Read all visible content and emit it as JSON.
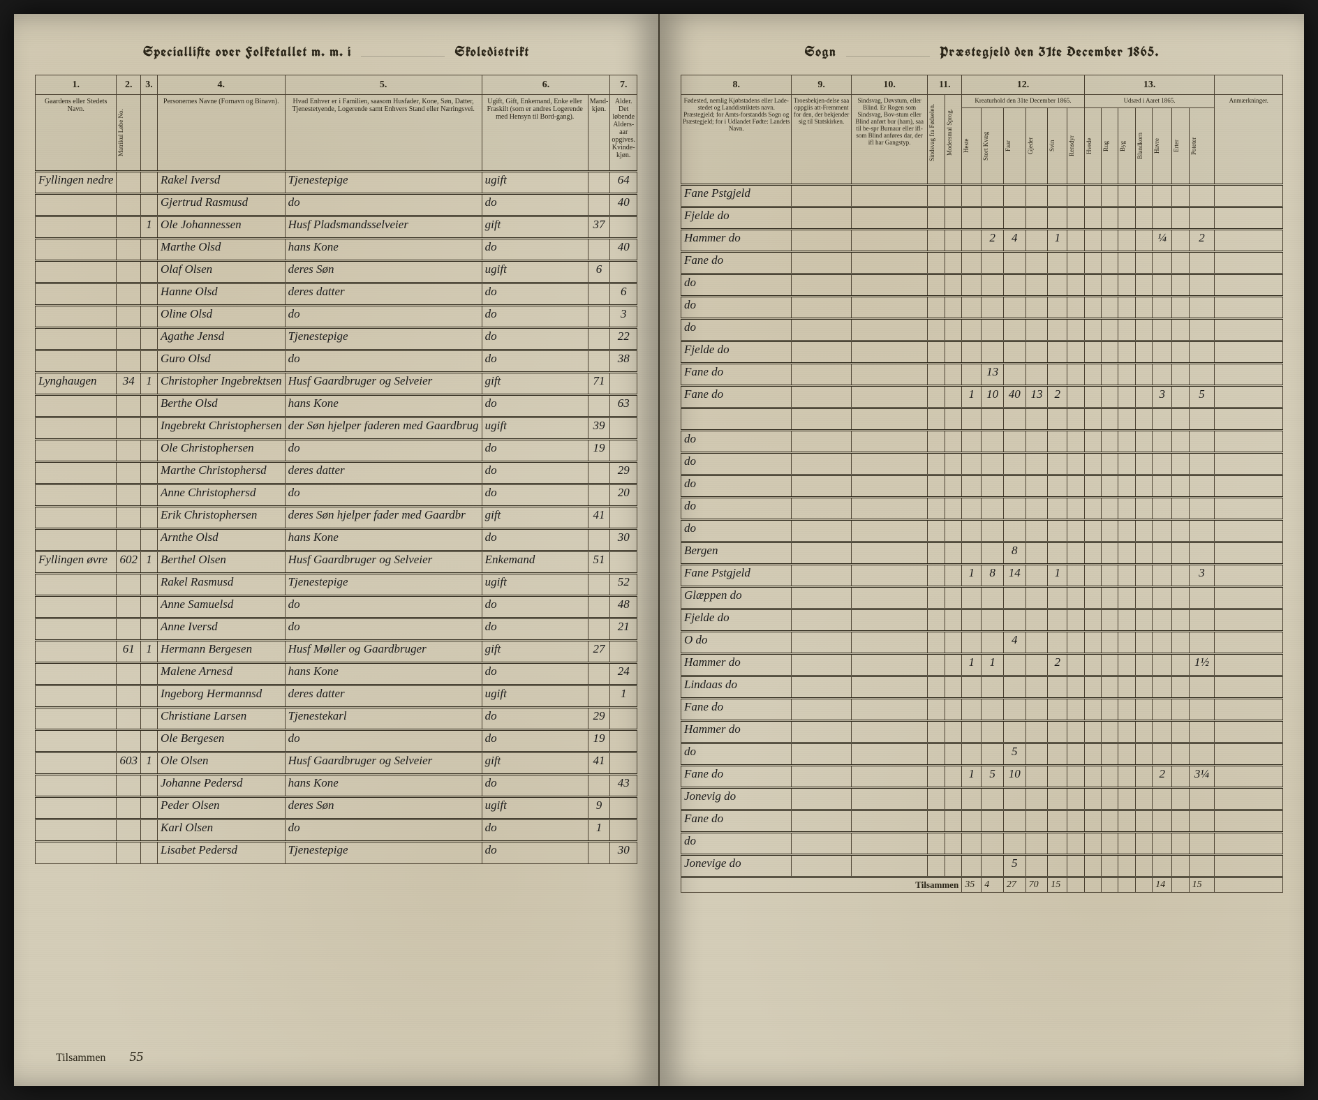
{
  "meta": {
    "year": "1865",
    "date_label": "31te December",
    "left_title_a": "Speciallifte over Folketallet m. m. i",
    "left_title_b": "Skoledistrikt",
    "right_title_a": "Sogn",
    "right_title_b": "Præstegjeld den"
  },
  "left_columns": {
    "c1": "1.",
    "c2": "2.",
    "c3": "3.",
    "c4": "4.",
    "c5": "5.",
    "c6": "6.",
    "c7": "7.",
    "h1": "Gaardens eller Stedets\nNavn.",
    "h2": "Matrikul Løbe No.",
    "h3": "",
    "h4": "Personernes Navne (Fornavn og Binavn).",
    "h5": "Hvad Enhver er i Familien, saasom Husfader, Kone, Søn, Datter, Tjenestetyende, Logerende\nsamt\nEnhvers Stand eller Næringsvei.",
    "h6a": "Ugift, Gift, Enkemand, Enke eller Fraskilt (som er andres Logerende med Hensyn til Bord-gang).",
    "h6b": "Mand-kjøn.",
    "h7": "Alder.\nDet løbende Alders-aar opgives.\nKvinde-kjøn."
  },
  "right_columns": {
    "c8": "8.",
    "c9": "9.",
    "c10": "10.",
    "c11": "11.",
    "c12": "12.",
    "c13": "13.",
    "h8": "Fødested, nemlig Kjøbstadens eller Lade-stedet og Landdistriktets navn. Præstegjeld; for Amts-forstandds Sogn og Præstegjeld; for i Udlandet Fødte: Landets Navn.",
    "h9": "Troesbekjen-delse saa oppgiis att-Fremment for den, der bekjender sig til Statskirken.",
    "h10": "Sindsvag, Døvstum, eller Blind. Er Rogen som Sindsvag, Bov-stum eller Blind anført bur (ham), saa til be-spr Burnaur eller ifl-som Blind anføres dar, der ifl har Gangstyp.",
    "h11a": "Sindsvag fra Fødselen.",
    "h11b": "Modersmal Sprog.",
    "h12": "Kreaturhold den 31te December 1865.",
    "h13": "Udsæd i Aaret 1865.",
    "h14": "Anmærkninger.",
    "animals": [
      "Heste",
      "Stort Kvæg",
      "Faar",
      "Gjeder",
      "Svin",
      "Rensdyr"
    ],
    "crops": [
      "Hvede",
      "Rug",
      "Byg",
      "Blandkorn",
      "Havre",
      "Erter",
      "Poteter"
    ]
  },
  "rows": [
    {
      "place": "Fyllingen nedre",
      "mat": "",
      "a": "",
      "b": "",
      "name": "Rakel Iversd",
      "rel": "Tjenestepige",
      "stat": "ugift",
      "m": "",
      "f": "64",
      "birth": "Fane Pstgjeld",
      "nums": {}
    },
    {
      "place": "",
      "mat": "",
      "a": "",
      "b": "",
      "name": "Gjertrud Rasmusd",
      "rel": "do",
      "stat": "do",
      "m": "",
      "f": "40",
      "birth": "Fjelde  do",
      "nums": {}
    },
    {
      "place": "",
      "mat": "",
      "a": "1",
      "b": "1",
      "name": "Ole Johannessen",
      "rel": "Husf Pladsmandsselveier",
      "stat": "gift",
      "m": "37",
      "f": "",
      "birth": "Hammer do",
      "nums": {
        "kv": "2",
        "fa": "4",
        "sv": "1",
        "hav": "¼",
        "pot": "2"
      }
    },
    {
      "place": "",
      "mat": "",
      "a": "",
      "b": "",
      "name": "Marthe Olsd",
      "rel": "hans Kone",
      "stat": "do",
      "m": "",
      "f": "40",
      "birth": "Fane  do",
      "nums": {}
    },
    {
      "place": "",
      "mat": "",
      "a": "",
      "b": "",
      "name": "Olaf Olsen",
      "rel": "deres Søn",
      "stat": "ugift",
      "m": "6",
      "f": "",
      "birth": "do",
      "nums": {}
    },
    {
      "place": "",
      "mat": "",
      "a": "",
      "b": "",
      "name": "Hanne Olsd",
      "rel": "deres datter",
      "stat": "do",
      "m": "",
      "f": "6",
      "birth": "do",
      "nums": {}
    },
    {
      "place": "",
      "mat": "",
      "a": "",
      "b": "",
      "name": "Oline Olsd",
      "rel": "do",
      "stat": "do",
      "m": "",
      "f": "3",
      "birth": "do",
      "nums": {}
    },
    {
      "place": "",
      "mat": "",
      "a": "",
      "b": "",
      "name": "Agathe Jensd",
      "rel": "Tjenestepige",
      "stat": "do",
      "m": "",
      "f": "22",
      "birth": "Fjelde do",
      "nums": {}
    },
    {
      "place": "",
      "mat": "",
      "a": "",
      "b": "",
      "name": "Guro Olsd",
      "rel": "do",
      "stat": "do",
      "m": "",
      "f": "38",
      "birth": "Fane do",
      "nums": {
        "kv": "13"
      }
    },
    {
      "place": "Lynghaugen",
      "mat": "34",
      "a": "1",
      "b": "1",
      "name": "Christopher Ingebrektsen",
      "rel": "Husf Gaardbruger og Selveier",
      "stat": "gift",
      "m": "71",
      "f": "",
      "birth": "Fane  do",
      "nums": {
        "he": "1",
        "kv": "10",
        "fa": "40",
        "gj": "13",
        "sv": "2",
        "hav": "3",
        "pot": "5"
      }
    },
    {
      "place": "",
      "mat": "",
      "a": "",
      "b": "",
      "name": "Berthe Olsd",
      "rel": "hans Kone",
      "stat": "do",
      "m": "",
      "f": "63",
      "birth": "",
      "nums": {}
    },
    {
      "place": "",
      "mat": "",
      "a": "",
      "b": "",
      "name": "Ingebrekt Christophersen",
      "rel": "der Søn hjelper faderen med Gaardbrug",
      "stat": "ugift",
      "m": "39",
      "f": "",
      "birth": "do",
      "nums": {}
    },
    {
      "place": "",
      "mat": "",
      "a": "",
      "b": "",
      "name": "Ole Christophersen",
      "rel": "do",
      "stat": "do",
      "m": "19",
      "f": "",
      "birth": "do",
      "nums": {}
    },
    {
      "place": "",
      "mat": "",
      "a": "",
      "b": "",
      "name": "Marthe Christophersd",
      "rel": "deres datter",
      "stat": "do",
      "m": "",
      "f": "29",
      "birth": "do",
      "nums": {}
    },
    {
      "place": "",
      "mat": "",
      "a": "",
      "b": "",
      "name": "Anne Christophersd",
      "rel": "do",
      "stat": "do",
      "m": "",
      "f": "20",
      "birth": "do",
      "nums": {}
    },
    {
      "place": "",
      "mat": "",
      "a": "",
      "b": "",
      "name": "Erik Christophersen",
      "rel": "deres Søn hjelper fader med Gaardbr",
      "stat": "gift",
      "m": "41",
      "f": "",
      "birth": "do",
      "nums": {}
    },
    {
      "place": "",
      "mat": "",
      "a": "",
      "b": "",
      "name": "Arnthe Olsd",
      "rel": "hans Kone",
      "stat": "do",
      "m": "",
      "f": "30",
      "birth": "Bergen",
      "nums": {
        "fa": "8"
      }
    },
    {
      "place": "Fyllingen øvre",
      "mat": "602",
      "a": "1",
      "b": "1",
      "name": "Berthel Olsen",
      "rel": "Husf Gaardbruger og Selveier",
      "stat": "Enkemand",
      "m": "51",
      "f": "",
      "birth": "Fane Pstgjeld",
      "nums": {
        "he": "1",
        "kv": "8",
        "fa": "14",
        "sv": "1",
        "pot": "3"
      }
    },
    {
      "place": "",
      "mat": "",
      "a": "",
      "b": "",
      "name": "Rakel Rasmusd",
      "rel": "Tjenestepige",
      "stat": "ugift",
      "m": "",
      "f": "52",
      "birth": "Glæppen do",
      "nums": {}
    },
    {
      "place": "",
      "mat": "",
      "a": "",
      "b": "",
      "name": "Anne Samuelsd",
      "rel": "do",
      "stat": "do",
      "m": "",
      "f": "48",
      "birth": "Fjelde do",
      "nums": {}
    },
    {
      "place": "",
      "mat": "",
      "a": "",
      "b": "",
      "name": "Anne Iversd",
      "rel": "do",
      "stat": "do",
      "m": "",
      "f": "21",
      "birth": "O  do",
      "nums": {
        "fa": "4"
      }
    },
    {
      "place": "",
      "mat": "61",
      "a": "1",
      "b": "1",
      "name": "Hermann Bergesen",
      "rel": "Husf Møller og Gaardbruger",
      "stat": "gift",
      "m": "27",
      "f": "",
      "birth": "Hammer do",
      "nums": {
        "he": "1",
        "kv": "1",
        "sv": "2",
        "pot": "1½"
      }
    },
    {
      "place": "",
      "mat": "",
      "a": "",
      "b": "",
      "name": "Malene Arnesd",
      "rel": "hans Kone",
      "stat": "do",
      "m": "",
      "f": "24",
      "birth": "Lindaas do",
      "nums": {}
    },
    {
      "place": "",
      "mat": "",
      "a": "",
      "b": "",
      "name": "Ingeborg Hermannsd",
      "rel": "deres datter",
      "stat": "ugift",
      "m": "",
      "f": "1",
      "birth": "Fane do",
      "nums": {}
    },
    {
      "place": "",
      "mat": "",
      "a": "",
      "b": "",
      "name": "Christiane Larsen",
      "rel": "Tjenestekarl",
      "stat": "do",
      "m": "29",
      "f": "",
      "birth": "Hammer do",
      "nums": {}
    },
    {
      "place": "",
      "mat": "",
      "a": "",
      "b": "",
      "name": "Ole Bergesen",
      "rel": "do",
      "stat": "do",
      "m": "19",
      "f": "",
      "birth": "do",
      "nums": {
        "fa": "5"
      }
    },
    {
      "place": "",
      "mat": "603",
      "a": "1",
      "b": "1",
      "name": "Ole Olsen",
      "rel": "Husf Gaardbruger og Selveier",
      "stat": "gift",
      "m": "41",
      "f": "",
      "birth": "Fane  do",
      "nums": {
        "he": "1",
        "kv": "5",
        "fa": "10",
        "hav": "2",
        "pot": "3¼"
      }
    },
    {
      "place": "",
      "mat": "",
      "a": "",
      "b": "",
      "name": "Johanne Pedersd",
      "rel": "hans Kone",
      "stat": "do",
      "m": "",
      "f": "43",
      "birth": "Jonevig do",
      "nums": {}
    },
    {
      "place": "",
      "mat": "",
      "a": "",
      "b": "",
      "name": "Peder Olsen",
      "rel": "deres Søn",
      "stat": "ugift",
      "m": "9",
      "f": "",
      "birth": "Fane do",
      "nums": {}
    },
    {
      "place": "",
      "mat": "",
      "a": "",
      "b": "",
      "name": "Karl Olsen",
      "rel": "do",
      "stat": "do",
      "m": "1",
      "f": "",
      "birth": "do",
      "nums": {}
    },
    {
      "place": "",
      "mat": "",
      "a": "",
      "b": "",
      "name": "Lisabet Pedersd",
      "rel": "Tjenestepige",
      "stat": "do",
      "m": "",
      "f": "30",
      "birth": "Jonevige do",
      "nums": {
        "fa": "5"
      }
    }
  ],
  "footer": {
    "left_label": "Tilsammen",
    "left_value": "55",
    "right_label": "Tilsammen",
    "sums": {
      "he": "35",
      "kv": "4",
      "fa": "27",
      "gj": "70",
      "sv": "15",
      "hav": "14",
      "pot": "15"
    }
  },
  "colors": {
    "paper": "#d4cdb8",
    "ink": "#2a2518",
    "line": "#4a4030",
    "handwriting": "#1a1a1a"
  }
}
